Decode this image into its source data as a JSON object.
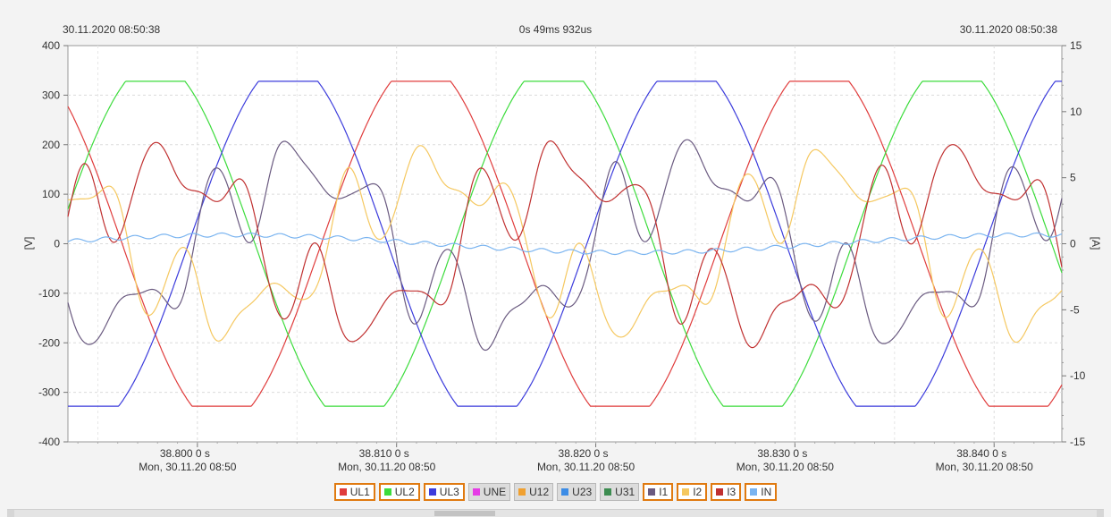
{
  "header": {
    "left_timestamp": "30.11.2020 08:50:38",
    "center_duration": "0s 49ms 932us",
    "right_timestamp": "30.11.2020 08:50:38"
  },
  "chart_data": {
    "type": "line",
    "left_axis": {
      "label": "[V]",
      "ticks": [
        400,
        300,
        200,
        100,
        0,
        -100,
        -200,
        -300,
        -400
      ],
      "ylim": [
        -400,
        400
      ]
    },
    "right_axis": {
      "label": "[A]",
      "ticks": [
        15,
        10,
        5,
        0,
        -5,
        -10,
        -15
      ],
      "ylim": [
        -15,
        15
      ]
    },
    "x_range_s": [
      38.7935,
      38.8434
    ],
    "x_ticks": [
      {
        "value": 38.8,
        "label": "38.800   0 s",
        "date": "Mon, 30.11.20 08:50"
      },
      {
        "value": 38.81,
        "label": "38.810   0 s",
        "date": "Mon, 30.11.20 08:50"
      },
      {
        "value": 38.82,
        "label": "38.820   0 s",
        "date": "Mon, 30.11.20 08:50"
      },
      {
        "value": 38.83,
        "label": "38.830   0 s",
        "date": "Mon, 30.11.20 08:50"
      },
      {
        "value": 38.84,
        "label": "38.840   0 s",
        "date": "Mon, 30.11.20 08:50"
      }
    ],
    "grid": true,
    "series": [
      {
        "name": "UL1",
        "color": "#e03c3c",
        "axis": "left",
        "kind": "voltage",
        "amplitude": 328,
        "phase_deg": -112,
        "visible": true
      },
      {
        "name": "UL2",
        "color": "#3cdc3c",
        "axis": "left",
        "kind": "voltage",
        "amplitude": 328,
        "phase_deg": 128,
        "visible": true
      },
      {
        "name": "UL3",
        "color": "#3c3cdc",
        "axis": "left",
        "kind": "voltage",
        "amplitude": 328,
        "phase_deg": 8,
        "visible": true
      },
      {
        "name": "UNE",
        "color": "#e63ce6",
        "axis": "left",
        "visible": false
      },
      {
        "name": "U12",
        "color": "#f0a030",
        "axis": "left",
        "visible": false
      },
      {
        "name": "U23",
        "color": "#3c8ce6",
        "axis": "left",
        "visible": false
      },
      {
        "name": "U31",
        "color": "#3c8c50",
        "axis": "left",
        "visible": false
      },
      {
        "name": "I1",
        "color": "#6a5a80",
        "axis": "right",
        "kind": "current",
        "amplitude": 9.2,
        "phase_deg": 0,
        "visible": true
      },
      {
        "name": "I2",
        "color": "#f5c860",
        "axis": "right",
        "kind": "current",
        "amplitude": 8.5,
        "phase_deg": -120,
        "visible": true
      },
      {
        "name": "I3",
        "color": "#c03030",
        "axis": "right",
        "kind": "current",
        "amplitude": 9.0,
        "phase_deg": 120,
        "visible": true
      },
      {
        "name": "IN",
        "color": "#7ab4f0",
        "axis": "right",
        "kind": "neutral",
        "amplitude": 0.7,
        "phase_deg": 0,
        "visible": true
      }
    ],
    "frequency_hz": 50
  }
}
